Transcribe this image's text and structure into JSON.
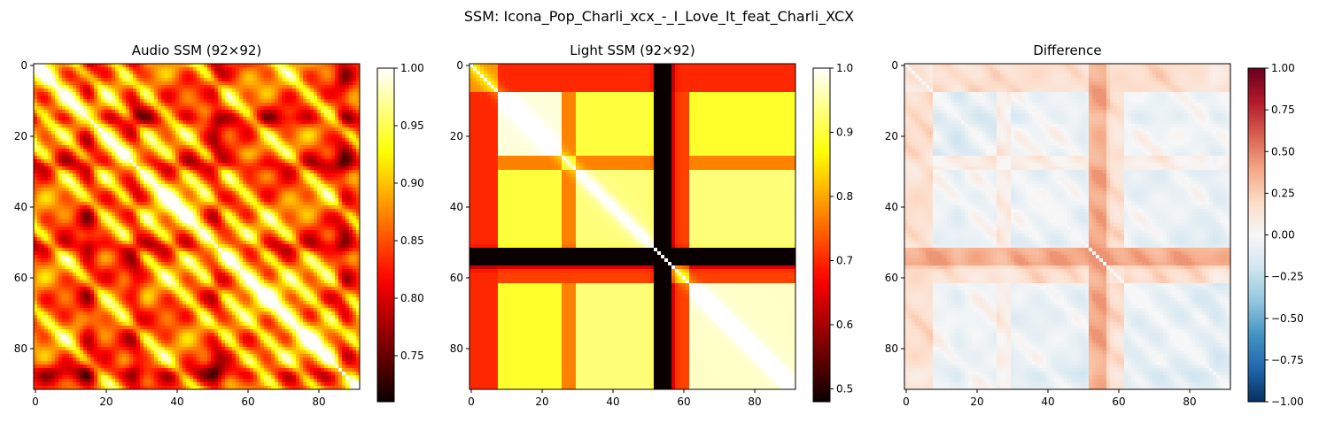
{
  "figure": {
    "suptitle": "SSM: Icona_Pop_Charli_xcx_-_I_Love_It_feat_Charli_XCX"
  },
  "chart_data": [
    {
      "type": "heatmap",
      "title": "Audio SSM (92×92)",
      "matrix_size": 92,
      "colormap": "hot",
      "x_ticks": [
        0,
        20,
        40,
        60,
        80
      ],
      "y_ticks": [
        0,
        20,
        40,
        60,
        80
      ],
      "colorbar": {
        "min": 0.71,
        "max": 1.0,
        "ticks": [
          0.75,
          0.8,
          0.85,
          0.9,
          0.95,
          1.0
        ],
        "tick_labels": [
          "0.75",
          "0.80",
          "0.85",
          "0.90",
          "0.95",
          "1.00"
        ]
      },
      "structure": {
        "low_similarity_rows": [
          28,
          51,
          87
        ],
        "repeated_paths": "bright off-diagonal stripes; diagonal = 1.00"
      }
    },
    {
      "type": "heatmap",
      "title": "Light SSM (92×92)",
      "matrix_size": 92,
      "colormap": "hot",
      "x_ticks": [
        0,
        20,
        40,
        60,
        80
      ],
      "y_ticks": [
        0,
        20,
        40,
        60,
        80
      ],
      "colorbar": {
        "min": 0.48,
        "max": 1.0,
        "ticks": [
          0.5,
          0.6,
          0.7,
          0.8,
          0.9,
          1.0
        ],
        "tick_labels": [
          "0.5",
          "0.6",
          "0.7",
          "0.8",
          "0.9",
          "1.0"
        ]
      },
      "structure": {
        "segments": [
          [
            0,
            8
          ],
          [
            8,
            26
          ],
          [
            26,
            30
          ],
          [
            30,
            52
          ],
          [
            52,
            57
          ],
          [
            57,
            62
          ],
          [
            62,
            92
          ]
        ],
        "dark_bands": [
          54,
          55
        ]
      }
    },
    {
      "type": "heatmap",
      "title": "Difference",
      "matrix_size": 92,
      "colormap": "RdBu_r",
      "x_ticks": [
        0,
        20,
        40,
        60,
        80
      ],
      "y_ticks": [
        0,
        20,
        40,
        60,
        80
      ],
      "colorbar": {
        "min": -1.0,
        "max": 1.0,
        "ticks": [
          1.0,
          0.75,
          0.5,
          0.25,
          0.0,
          -0.25,
          -0.5,
          -0.75,
          -1.0
        ],
        "tick_labels": [
          "1.00",
          "0.75",
          "0.50",
          "0.25",
          "0.00",
          "−0.25",
          "−0.50",
          "−0.75",
          "−1.00"
        ]
      },
      "structure": {
        "range_observed": [
          -0.2,
          0.45
        ]
      }
    }
  ]
}
